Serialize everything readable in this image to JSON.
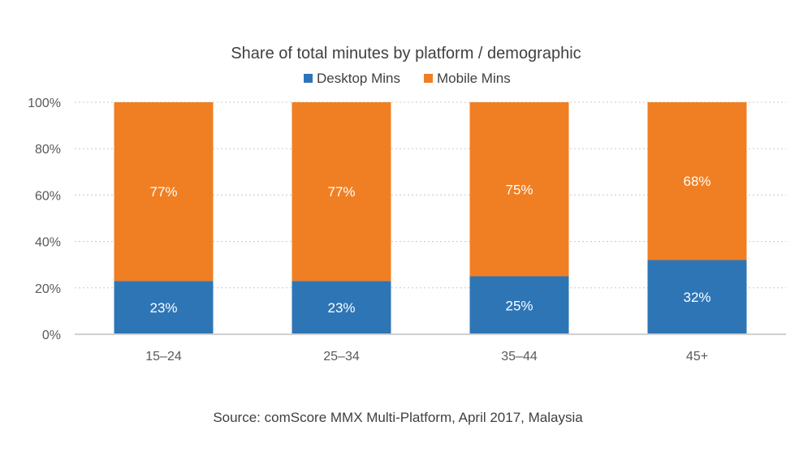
{
  "chart_data": {
    "type": "bar",
    "stacked": true,
    "title": "Share of total minutes by platform / demographic",
    "categories": [
      "15–24",
      "25–34",
      "35–44",
      "45+"
    ],
    "series": [
      {
        "name": "Desktop Mins",
        "values": [
          23,
          23,
          25,
          32
        ],
        "labels": [
          "23%",
          "23%",
          "25%",
          "32%"
        ],
        "color": "#2E75B6"
      },
      {
        "name": "Mobile Mins",
        "values": [
          77,
          77,
          75,
          68
        ],
        "labels": [
          "77%",
          "77%",
          "75%",
          "68%"
        ],
        "color": "#F07F23"
      }
    ],
    "ylim": [
      0,
      100
    ],
    "yticks": [
      "0%",
      "20%",
      "40%",
      "60%",
      "80%",
      "100%"
    ],
    "grid": true,
    "legend_position": "top",
    "source": "Source: comScore MMX Multi-Platform, April 2017, Malaysia"
  }
}
